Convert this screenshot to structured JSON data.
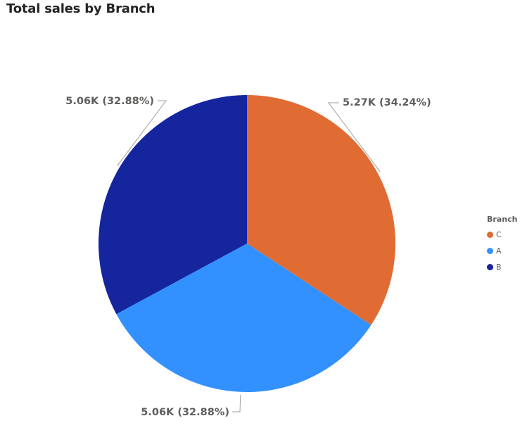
{
  "chart_data": {
    "type": "pie",
    "title": "Total sales by Branch",
    "legend_title": "Branch",
    "legend_position": "right",
    "slices": [
      {
        "name": "C",
        "value": 5.27,
        "label": "5.27K (34.24%)",
        "color": "#E06C34"
      },
      {
        "name": "A",
        "value": 5.06,
        "label": "5.06K (32.88%)",
        "color": "#3391FF"
      },
      {
        "name": "B",
        "value": 5.06,
        "label": "5.06K (32.88%)",
        "color": "#15259D"
      }
    ]
  }
}
